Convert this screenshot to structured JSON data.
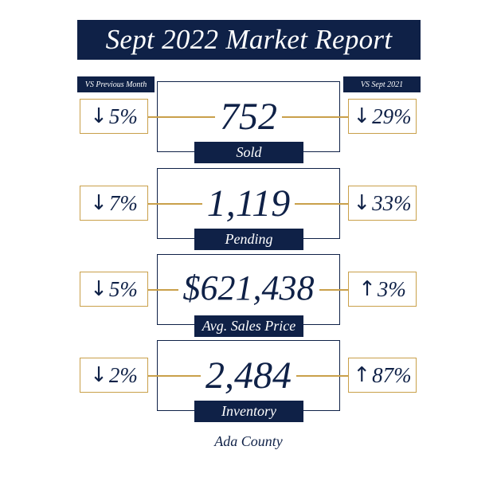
{
  "title": "Sept 2022 Market Report",
  "headers": {
    "left": "VS Previous Month",
    "right": "VS Sept 2021"
  },
  "metrics": [
    {
      "value": "752",
      "label": "Sold",
      "prev_month": {
        "arrow": "↓",
        "text": "5%"
      },
      "prev_year": {
        "arrow": "↓",
        "text": "29%"
      }
    },
    {
      "value": "1,119",
      "label": "Pending",
      "prev_month": {
        "arrow": "↓",
        "text": "7%"
      },
      "prev_year": {
        "arrow": "↓",
        "text": "33%"
      }
    },
    {
      "value": "$621,438",
      "label": "Avg. Sales Price",
      "prev_month": {
        "arrow": "↓",
        "text": "5%"
      },
      "prev_year": {
        "arrow": "↑",
        "text": "3%"
      }
    },
    {
      "value": "2,484",
      "label": "Inventory",
      "prev_month": {
        "arrow": "↓",
        "text": "2%"
      },
      "prev_year": {
        "arrow": "↑",
        "text": "87%"
      }
    }
  ],
  "footer": "Ada County",
  "colors": {
    "navy": "#0f2147",
    "gold": "#c9a04a"
  }
}
